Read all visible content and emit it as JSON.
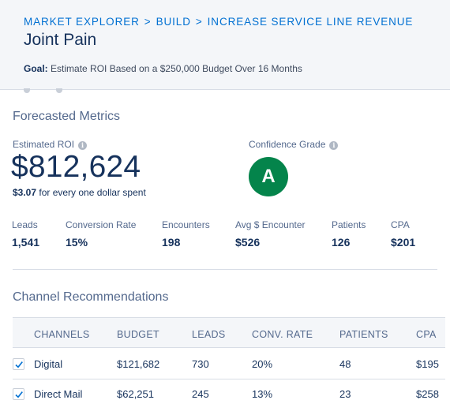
{
  "breadcrumb": [
    "MARKET EXPLORER",
    "BUILD",
    "INCREASE SERVICE LINE REVENUE"
  ],
  "page_title": "Joint Pain",
  "goal": {
    "label": "Goal:",
    "text": "Estimate ROI Based on a $250,000 Budget Over 16 Months"
  },
  "forecast": {
    "title": "Forecasted Metrics",
    "roi_label": "Estimated ROI",
    "roi_value": "$812,624",
    "roi_per_dollar": "$3.07",
    "roi_per_dollar_text": " for every one dollar spent",
    "grade_label": "Confidence Grade",
    "grade": "A",
    "grade_color": "#04844b",
    "metrics": [
      {
        "label": "Leads",
        "value": "1,541"
      },
      {
        "label": "Conversion Rate",
        "value": "15%"
      },
      {
        "label": "Encounters",
        "value": "198"
      },
      {
        "label": "Avg $ Encounter",
        "value": "$526"
      },
      {
        "label": "Patients",
        "value": "126"
      },
      {
        "label": "CPA",
        "value": "$201"
      }
    ]
  },
  "channels": {
    "title": "Channel Recommendations",
    "columns": [
      "CHANNELS",
      "BUDGET",
      "LEADS",
      "CONV. RATE",
      "PATIENTS",
      "CPA"
    ],
    "rows": [
      {
        "checked": true,
        "channel": "Digital",
        "budget": "$121,682",
        "leads": "730",
        "conv_rate": "20%",
        "patients": "48",
        "cpa": "$195"
      },
      {
        "checked": true,
        "channel": "Direct Mail",
        "budget": "$62,251",
        "leads": "245",
        "conv_rate": "13%",
        "patients": "23",
        "cpa": "$258"
      }
    ]
  },
  "colors": {
    "accent": "#0070d2",
    "text": "#16325c",
    "muted": "#54698d",
    "grade": "#04844b"
  }
}
